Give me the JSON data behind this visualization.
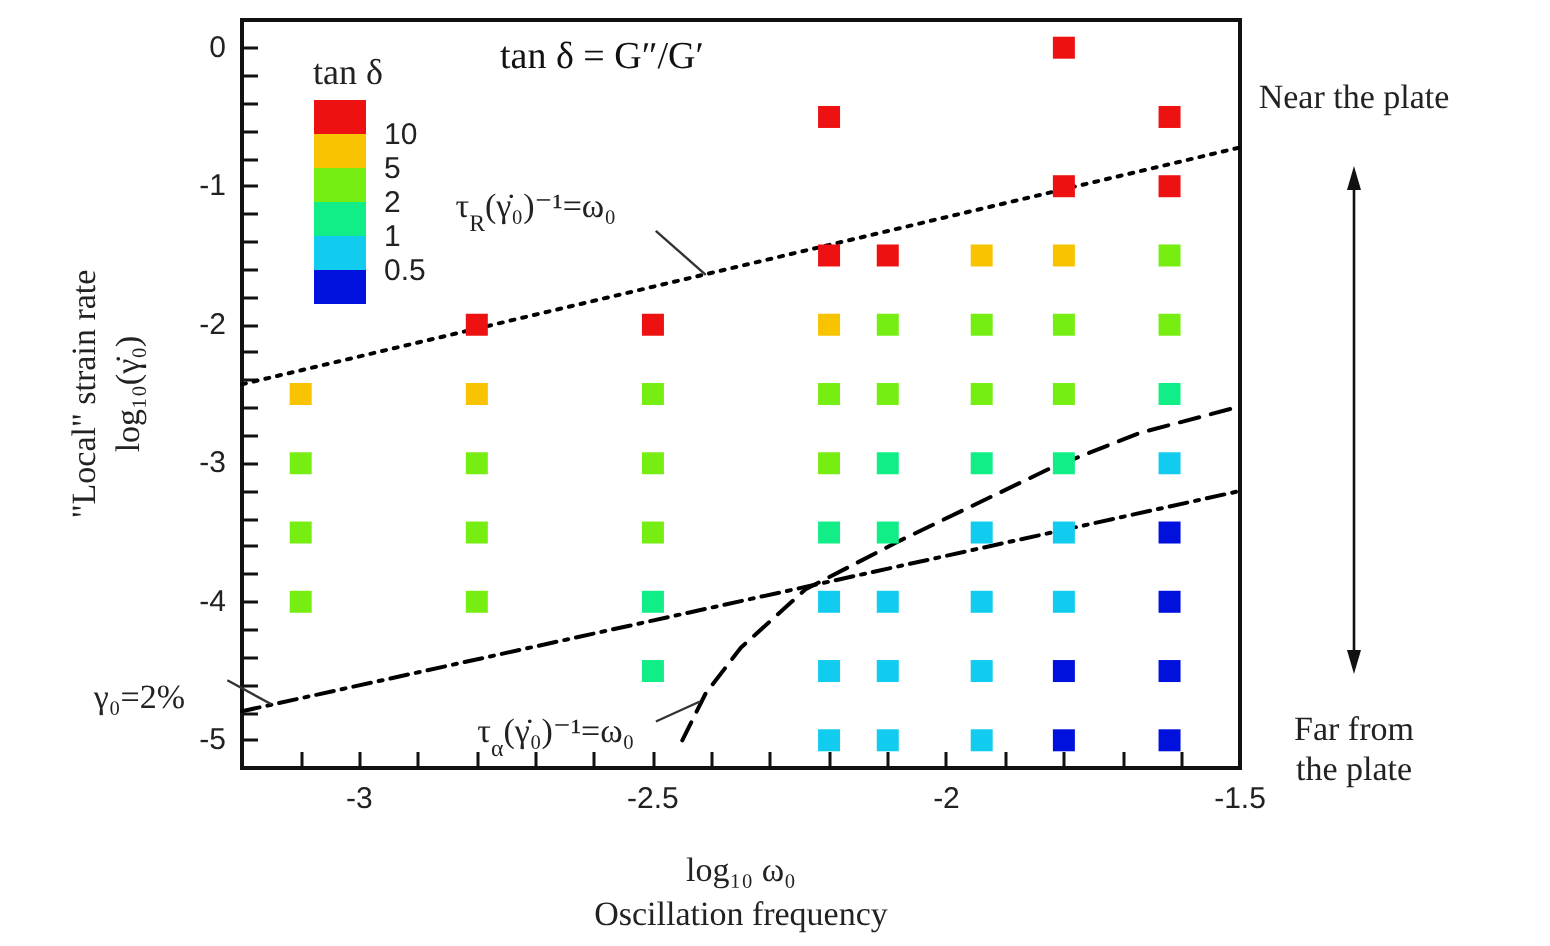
{
  "chart_data": {
    "type": "scatter",
    "title": "tan δ = G″/G′",
    "xlabel": "log₁₀ ω₀\nOscillation frequency",
    "ylabel": "\"Local\" strain rate\nlog₁₀(γ̇₀)",
    "xlim": [
      -3.2,
      -1.5
    ],
    "xticks": [
      {
        "value": -3.1,
        "label": null
      },
      -3,
      {
        "value": -2.9,
        "label": null
      },
      {
        "value": -2.8,
        "label": null
      },
      {
        "value": -2.7,
        "label": null
      },
      {
        "value": -2.6,
        "label": null
      },
      -2.5,
      {
        "value": -2.4,
        "label": null
      },
      {
        "value": -2.3,
        "label": null
      },
      {
        "value": -2.2,
        "label": null
      },
      {
        "value": -2.1,
        "label": null
      },
      -2,
      {
        "value": -1.9,
        "label": null
      },
      {
        "value": -1.8,
        "label": null
      },
      {
        "value": -1.7,
        "label": null
      },
      {
        "value": -1.6,
        "label": null
      },
      -1.5
    ],
    "ylim": [
      -5.2,
      0.2
    ],
    "yticks": [
      -5,
      {
        "value": -4.8,
        "label": null
      },
      {
        "value": -4.6,
        "label": null
      },
      {
        "value": -4.4,
        "label": null
      },
      {
        "value": -4.2,
        "label": null
      },
      -4,
      {
        "value": -3.8,
        "label": null
      },
      {
        "value": -3.6,
        "label": null
      },
      {
        "value": -3.4,
        "label": null
      },
      {
        "value": -3.2,
        "label": null
      },
      -3,
      {
        "value": -2.8,
        "label": null
      },
      {
        "value": -2.6,
        "label": null
      },
      {
        "value": -2.4,
        "label": null
      },
      {
        "value": -2.2,
        "label": null
      },
      -2,
      {
        "value": -1.8,
        "label": null
      },
      {
        "value": -1.6,
        "label": null
      },
      {
        "value": -1.4,
        "label": null
      },
      {
        "value": -1.2,
        "label": null
      },
      -1,
      {
        "value": -0.8,
        "label": null
      },
      {
        "value": -0.6,
        "label": null
      },
      {
        "value": -0.4,
        "label": null
      },
      {
        "value": -0.2,
        "label": null
      },
      0
    ],
    "marker": "square",
    "grid": false,
    "series": [
      {
        "color": "#ee1111",
        "x": [
          -2.8,
          -2.5,
          -2.2,
          -2.2,
          -2.1,
          -1.8,
          -1.8,
          -1.62,
          -1.62
        ],
        "values": [
          -2,
          -2,
          -0.5,
          -1.5,
          -1.5,
          0,
          -1,
          -0.5,
          -1
        ]
      },
      {
        "color": "#f8c300",
        "x": [
          -3.1,
          -2.8,
          -2.2,
          -1.94,
          -1.8
        ],
        "values": [
          -2.5,
          -2.5,
          -2,
          -1.5,
          -1.5
        ]
      },
      {
        "color": "#77ee11",
        "x": [
          -3.1,
          -3.1,
          -3.1,
          -2.8,
          -2.8,
          -2.8,
          -2.5,
          -2.5,
          -2.5,
          -2.2,
          -2.2,
          -2.1,
          -2.1,
          -1.94,
          -1.94,
          -1.8,
          -1.8,
          -1.62,
          -1.62
        ],
        "values": [
          -3,
          -3.5,
          -4,
          -3,
          -3.5,
          -4,
          -2.5,
          -3,
          -3.5,
          -2.5,
          -3,
          -2,
          -2.5,
          -2,
          -2.5,
          -2,
          -2.5,
          -1.5,
          -2
        ]
      },
      {
        "color": "#11ee88",
        "x": [
          -2.5,
          -2.5,
          -2.2,
          -2.1,
          -2.1,
          -1.94,
          -1.8,
          -1.62
        ],
        "values": [
          -4,
          -4.5,
          -3.5,
          -3,
          -3.5,
          -3,
          -3,
          -2.5
        ]
      },
      {
        "color": "#11ccee",
        "x": [
          -2.2,
          -2.2,
          -2.2,
          -2.1,
          -2.1,
          -2.1,
          -1.94,
          -1.94,
          -1.94,
          -1.94,
          -1.8,
          -1.8,
          -1.62
        ],
        "values": [
          -4,
          -4.5,
          -5,
          -4,
          -4.5,
          -5,
          -3.5,
          -4,
          -4.5,
          -5,
          -3.5,
          -4,
          -3
        ]
      },
      {
        "color": "#0011dd",
        "x": [
          -1.8,
          -1.8,
          -1.62,
          -1.62,
          -1.62,
          -1.62
        ],
        "values": [
          -4.5,
          -5,
          -3.5,
          -4,
          -4.5,
          -5
        ]
      },
      {
        "type": "line",
        "color": "#000000",
        "line_style": "dotted",
        "marker": "none",
        "x": [
          -3.2,
          -1.5
        ],
        "values": [
          -2.43,
          -0.72
        ]
      },
      {
        "type": "line",
        "color": "#000000",
        "line_style": "dashed",
        "marker": "none",
        "x": [
          -2.45,
          -2.41,
          -2.35,
          -2.24,
          -2.08,
          -1.82,
          -1.67,
          -1.5
        ],
        "values": [
          -5.0,
          -4.66,
          -4.33,
          -3.91,
          -3.56,
          -3.03,
          -2.78,
          -2.59
        ]
      },
      {
        "type": "line",
        "color": "#000000",
        "line_style": "dashdot",
        "marker": "none",
        "x": [
          -3.2,
          -1.5
        ],
        "values": [
          -4.79,
          -3.2
        ]
      }
    ],
    "annotations": [
      {
        "text": "τ$_{R}$(γ̇₀)⁻¹=ω₀",
        "x": -2.41,
        "y": -1.64
      },
      {
        "text": "τ$_{α}$(γ̇₀)⁻¹=ω₀",
        "x": -2.42,
        "y": -4.72
      },
      {
        "text": "γ₀=2%",
        "x": -3.15,
        "y": -4.74
      },
      "Near the plate",
      "Far from the plate",
      "tan δ",
      "10",
      "5",
      "2",
      "1",
      "0.5"
    ]
  }
}
